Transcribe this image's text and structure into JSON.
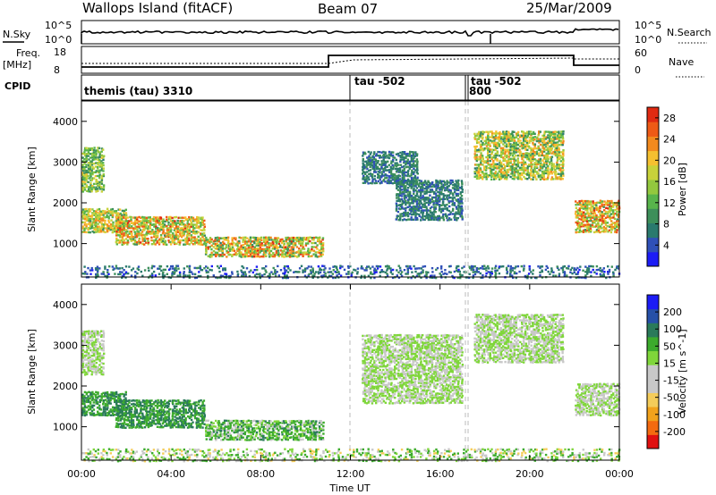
{
  "header": {
    "title": "Wallops Island (fitACF)",
    "beam": "Beam 07",
    "date": "25/Mar/2009"
  },
  "strip": {
    "nsky_label": "N.Sky",
    "nsearch_label": "N.Search",
    "noise_ticks": [
      "10^5",
      "10^0"
    ],
    "freq_label": "Freq.",
    "freq_unit": "[MHz]",
    "freq_ticks": [
      "18",
      "8"
    ],
    "nave_label": "Nave",
    "nave_ticks": [
      "60",
      "0"
    ],
    "cpid_label": "CPID",
    "cpid_segments": [
      {
        "label": "themis (tau) 3310",
        "start": 0.0,
        "end": 12.0
      },
      {
        "label": "tau -502",
        "start": 12.0,
        "end": 17.2
      },
      {
        "label": "tau -502",
        "start": 17.3,
        "end": 24.0
      }
    ],
    "cpid_extra": "800"
  },
  "colors": {
    "power": [
      "#1c1cf5",
      "#2f50b8",
      "#2a7a6e",
      "#3d8f5a",
      "#58b44b",
      "#93c83e",
      "#c8d23a",
      "#f5c030",
      "#f28a1e",
      "#ee5a16",
      "#e02a12"
    ],
    "velocity": [
      "#e01010",
      "#f46a10",
      "#f2a21c",
      "#f4cc5a",
      "#c8c8c8",
      "#c8c8c8",
      "#7fd63a",
      "#3cab2c",
      "#2a7a5a",
      "#2650a8",
      "#1c1cf5"
    ]
  },
  "chart_data": [
    {
      "type": "heatmap",
      "name": "power",
      "xlabel": "",
      "ylabel": "Slant Range [km]",
      "xlim": [
        0,
        24
      ],
      "ylim": [
        180,
        4500
      ],
      "yticks": [
        1000,
        2000,
        3000,
        4000
      ],
      "colorbar_label": "Power [dB]",
      "colorbar_ticks": [
        4,
        8,
        12,
        16,
        20,
        24,
        28
      ],
      "colorbar_range": [
        0,
        30
      ],
      "regions": [
        {
          "t0": 0.0,
          "t1": 1.0,
          "r0": 2300,
          "r1": 3400,
          "v0": 8,
          "v1": 20
        },
        {
          "t0": 0.0,
          "t1": 2.0,
          "r0": 1300,
          "r1": 1900,
          "v0": 10,
          "v1": 24
        },
        {
          "t0": 1.5,
          "t1": 5.5,
          "r0": 1000,
          "r1": 1700,
          "v0": 10,
          "v1": 28
        },
        {
          "t0": 5.5,
          "t1": 10.8,
          "r0": 700,
          "r1": 1200,
          "v0": 8,
          "v1": 28
        },
        {
          "t0": 12.5,
          "t1": 15.0,
          "r0": 2500,
          "r1": 3300,
          "v0": 4,
          "v1": 10
        },
        {
          "t0": 14.0,
          "t1": 17.0,
          "r0": 1600,
          "r1": 2600,
          "v0": 4,
          "v1": 10
        },
        {
          "t0": 17.5,
          "t1": 21.5,
          "r0": 2600,
          "r1": 3800,
          "v0": 8,
          "v1": 24
        },
        {
          "t0": 22.0,
          "t1": 24.0,
          "r0": 1300,
          "r1": 2100,
          "v0": 10,
          "v1": 28
        },
        {
          "t0": 0.0,
          "t1": 24.0,
          "r0": 180,
          "r1": 500,
          "v0": 2,
          "v1": 10
        }
      ]
    },
    {
      "type": "heatmap",
      "name": "velocity",
      "xlabel": "Time UT",
      "ylabel": "Slant Range [km]",
      "xlim": [
        0,
        24
      ],
      "ylim": [
        180,
        4500
      ],
      "xticks": [
        "00:00",
        "04:00",
        "08:00",
        "12:00",
        "16:00",
        "20:00",
        "00:00"
      ],
      "yticks": [
        1000,
        2000,
        3000,
        4000
      ],
      "colorbar_label": "Velocity [m s^-1]",
      "colorbar_ticks": [
        200,
        100,
        50,
        15,
        -15,
        -50,
        -100,
        -200
      ],
      "regions": [
        {
          "t0": 0.0,
          "t1": 1.0,
          "r0": 2300,
          "r1": 3400,
          "v0": -15,
          "v1": 15
        },
        {
          "t0": 0.0,
          "t1": 2.0,
          "r0": 1300,
          "r1": 1900,
          "v0": 20,
          "v1": 80
        },
        {
          "t0": 1.5,
          "t1": 5.5,
          "r0": 1000,
          "r1": 1700,
          "v0": 20,
          "v1": 80
        },
        {
          "t0": 5.5,
          "t1": 10.8,
          "r0": 700,
          "r1": 1200,
          "v0": -20,
          "v1": 60
        },
        {
          "t0": 12.5,
          "t1": 17.0,
          "r0": 1600,
          "r1": 3300,
          "v0": -15,
          "v1": 15
        },
        {
          "t0": 17.5,
          "t1": 21.5,
          "r0": 2600,
          "r1": 3800,
          "v0": -15,
          "v1": 15
        },
        {
          "t0": 22.0,
          "t1": 24.0,
          "r0": 1300,
          "r1": 2100,
          "v0": -15,
          "v1": 15
        },
        {
          "t0": 0.0,
          "t1": 24.0,
          "r0": 180,
          "r1": 500,
          "v0": -40,
          "v1": 40
        }
      ]
    }
  ]
}
